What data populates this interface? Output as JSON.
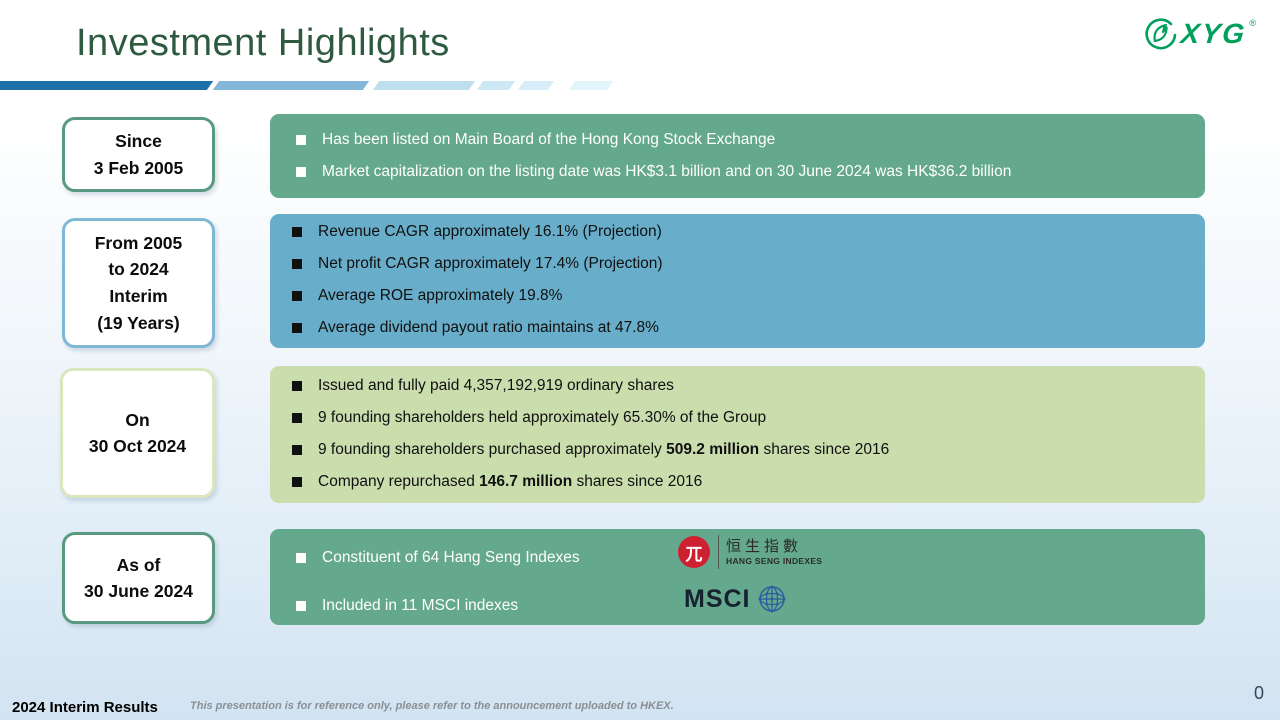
{
  "slide": {
    "title": "Investment Highlights",
    "page_number": "0",
    "footer": {
      "left": "2024 Interim Results",
      "disclaimer": "This presentation is for reference only, please refer to the announcement uploaded to HKEX."
    },
    "logo": {
      "text": "XYG",
      "registered": "®"
    }
  },
  "colors": {
    "title_green": "#2e5b40",
    "logo_green": "#00a05c",
    "teal_panel": "#64a88e",
    "blue_panel": "#68aeca",
    "green_panel": "#c9ddad",
    "teal_box_border": "#59997f",
    "blue_box_border": "#7fb8d4",
    "green_box_border": "#dae6bd",
    "hang_seng_red": "#cf2030",
    "msci_navy": "#16222e",
    "ribbon": [
      "#1f70a8",
      "#84b7d8",
      "#bfdfef",
      "#cde8f5",
      "#d7edf8",
      "#e3f3fa"
    ]
  },
  "rows": [
    {
      "label": [
        "Since",
        "3 Feb 2005"
      ],
      "bullets": [
        {
          "parts": [
            {
              "t": "Has been listed on Main Board of the Hong Kong Stock Exchange"
            }
          ]
        },
        {
          "parts": [
            {
              "t": "Market capitalization on the listing date was HK$3.1 billion and on 30 June 2024 was HK$36.2 billion"
            }
          ]
        }
      ]
    },
    {
      "label": [
        "From 2005",
        "to 2024",
        "Interim",
        "(19 Years)"
      ],
      "bullets": [
        {
          "parts": [
            {
              "t": "Revenue CAGR approximately 16.1% (Projection)"
            }
          ]
        },
        {
          "parts": [
            {
              "t": "Net profit CAGR approximately 17.4% (Projection)"
            }
          ]
        },
        {
          "parts": [
            {
              "t": "Average ROE approximately 19.8%"
            }
          ]
        },
        {
          "parts": [
            {
              "t": "Average dividend payout ratio maintains at 47.8%"
            }
          ]
        }
      ]
    },
    {
      "label": [
        "On",
        "30 Oct 2024"
      ],
      "bullets": [
        {
          "parts": [
            {
              "t": "Issued and fully paid 4,357,192,919 ordinary shares"
            }
          ]
        },
        {
          "parts": [
            {
              "t": "9 founding shareholders held approximately 65.30% of the Group"
            }
          ]
        },
        {
          "parts": [
            {
              "t": "9 founding shareholders purchased approximately "
            },
            {
              "t": "509.2 million",
              "b": true
            },
            {
              "t": " shares since 2016"
            }
          ]
        },
        {
          "parts": [
            {
              "t": "Company repurchased "
            },
            {
              "t": "146.7 million",
              "b": true
            },
            {
              "t": " shares since 2016"
            }
          ]
        }
      ]
    },
    {
      "label": [
        "As of",
        "30 June 2024"
      ],
      "bullets": [
        {
          "parts": [
            {
              "t": "Constituent of 64 Hang Seng Indexes"
            }
          ]
        },
        {
          "parts": [
            {
              "t": "Included in 11 MSCI indexes"
            }
          ]
        }
      ]
    }
  ],
  "logos": {
    "hang_seng": {
      "glyph": "兀",
      "cjk": "恒生指數",
      "latin": "HANG SENG INDEXES"
    },
    "msci": {
      "text": "MSCI"
    }
  }
}
